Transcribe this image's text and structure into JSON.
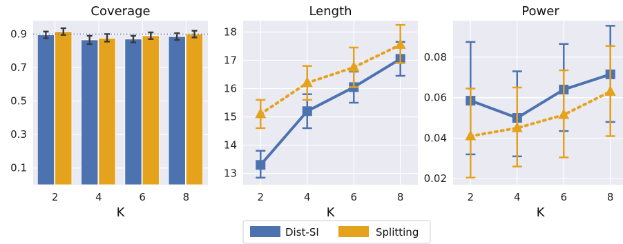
{
  "colors": {
    "panel_bg": "#EAEAF2",
    "grid": "#ffffff",
    "dist_si": "#4C72B0",
    "splitting": "#E5A21D",
    "errorbar_bar": "#3a3a3a",
    "reference_line": "#4C72B0"
  },
  "legend": {
    "placement": "bottom-center",
    "items": [
      {
        "label": "Dist-SI",
        "color": "#4C72B0"
      },
      {
        "label": "Splitting",
        "color": "#E5A21D"
      }
    ]
  },
  "chart_data": [
    {
      "type": "bar",
      "title": "Coverage",
      "xlabel": "K",
      "ylabel": "",
      "categories": [
        "2",
        "4",
        "6",
        "8"
      ],
      "ylim": [
        0,
        0.98
      ],
      "yticks": [
        0.1,
        0.3,
        0.5,
        0.7,
        0.9
      ],
      "ytick_labels": [
        "0.1",
        "0.3",
        "0.5",
        "0.7",
        "0.9"
      ],
      "reference_line": 0.9,
      "grid": true,
      "series": [
        {
          "name": "Dist-SI",
          "values": [
            0.895,
            0.865,
            0.87,
            0.885
          ],
          "err_low": [
            0.875,
            0.84,
            0.85,
            0.865
          ],
          "err_high": [
            0.915,
            0.89,
            0.89,
            0.905
          ]
        },
        {
          "name": "Splitting",
          "values": [
            0.915,
            0.875,
            0.89,
            0.9
          ],
          "err_low": [
            0.895,
            0.855,
            0.87,
            0.88
          ],
          "err_high": [
            0.935,
            0.9,
            0.91,
            0.92
          ]
        }
      ]
    },
    {
      "type": "line",
      "title": "Length",
      "xlabel": "K",
      "ylabel": "",
      "categories": [
        "2",
        "4",
        "6",
        "8"
      ],
      "ylim": [
        12.6,
        18.4
      ],
      "yticks": [
        13,
        14,
        15,
        16,
        17,
        18
      ],
      "ytick_labels": [
        "13",
        "14",
        "15",
        "16",
        "17",
        "18"
      ],
      "grid": true,
      "series": [
        {
          "name": "Dist-SI",
          "marker": "square",
          "linestyle": "solid",
          "values": [
            13.3,
            15.2,
            16.05,
            17.05
          ],
          "err_low": [
            12.85,
            14.6,
            15.5,
            16.45
          ],
          "err_high": [
            13.8,
            15.8,
            16.6,
            17.65
          ]
        },
        {
          "name": "Splitting",
          "marker": "triangle",
          "linestyle": "dotted",
          "values": [
            15.1,
            16.2,
            16.75,
            17.55
          ],
          "err_low": [
            14.6,
            15.6,
            16.05,
            16.9
          ],
          "err_high": [
            15.6,
            16.8,
            17.45,
            18.25
          ]
        }
      ]
    },
    {
      "type": "line",
      "title": "Power",
      "xlabel": "K",
      "ylabel": "",
      "categories": [
        "2",
        "4",
        "6",
        "8"
      ],
      "ylim": [
        0.017,
        0.098
      ],
      "yticks": [
        0.02,
        0.04,
        0.06,
        0.08
      ],
      "ytick_labels": [
        "0.02",
        "0.04",
        "0.06",
        "0.08"
      ],
      "grid": true,
      "series": [
        {
          "name": "Dist-SI",
          "marker": "square",
          "linestyle": "solid",
          "values": [
            0.0585,
            0.05,
            0.064,
            0.0715
          ],
          "err_low": [
            0.032,
            0.031,
            0.0435,
            0.048
          ],
          "err_high": [
            0.0875,
            0.073,
            0.0865,
            0.0955
          ]
        },
        {
          "name": "Splitting",
          "marker": "triangle",
          "linestyle": "dotted",
          "values": [
            0.041,
            0.045,
            0.0515,
            0.063
          ],
          "err_low": [
            0.0205,
            0.026,
            0.0305,
            0.041
          ],
          "err_high": [
            0.0645,
            0.065,
            0.0735,
            0.0855
          ]
        }
      ]
    }
  ]
}
